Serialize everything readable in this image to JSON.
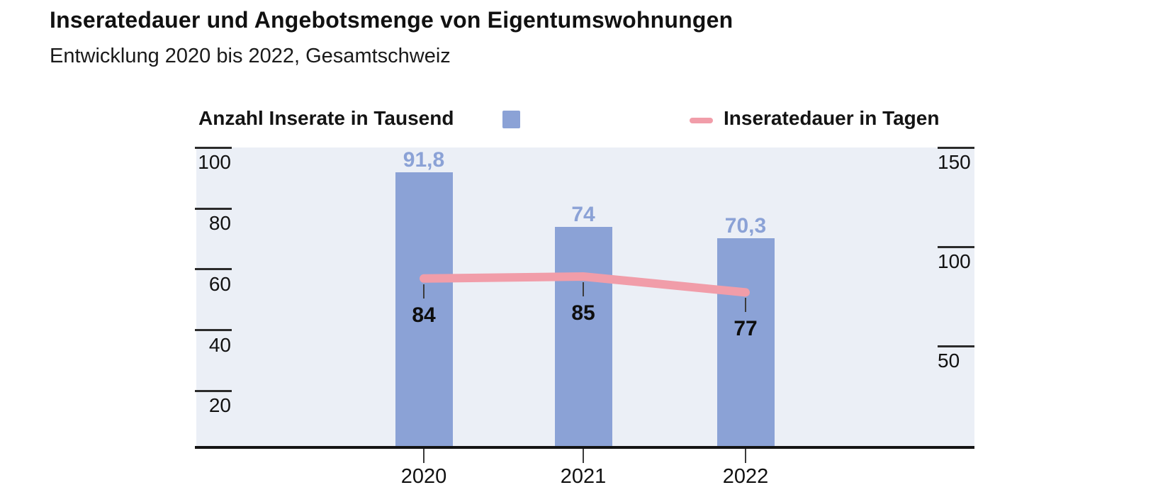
{
  "header": {
    "title": "Inseratedauer und Angebotsmenge von Eigentumswohnungen",
    "subtitle": "Entwicklung 2020 bis 2022, Gesamtschweiz"
  },
  "legend": {
    "bars_label": "Anzahl Inserate in Tausend",
    "line_label": "Inseratedauer in Tagen",
    "bar_swatch_color": "#8BA2D6",
    "line_swatch_color": "#F19DA9"
  },
  "chart_data": {
    "type": "bar+line",
    "title": "Inseratedauer und Angebotsmenge von Eigentumswohnungen",
    "subtitle": "Entwicklung 2020 bis 2022, Gesamtschweiz",
    "categories": [
      "2020",
      "2021",
      "2022"
    ],
    "series": [
      {
        "name": "Anzahl Inserate in Tausend",
        "type": "bar",
        "axis": "left",
        "values": [
          91.8,
          74,
          70.3
        ],
        "value_labels": [
          "91,8",
          "74",
          "70,3"
        ],
        "color": "#8BA2D6"
      },
      {
        "name": "Inseratedauer in Tagen",
        "type": "line",
        "axis": "right",
        "values": [
          84,
          85,
          77
        ],
        "value_labels": [
          "84",
          "85",
          "77"
        ],
        "color": "#F19DA9"
      }
    ],
    "left_axis": {
      "tick_values": [
        100,
        80,
        60,
        40,
        20
      ],
      "range": [
        0,
        105
      ],
      "label": "Anzahl Inserate in Tausend"
    },
    "right_axis": {
      "tick_values": [
        150,
        100,
        50
      ],
      "range": [
        0,
        150
      ],
      "label": "Inseratedauer in Tagen"
    },
    "plot_background": "#EBEFF6",
    "axis_color": "#141414",
    "grid": false,
    "legend_position": "top"
  }
}
